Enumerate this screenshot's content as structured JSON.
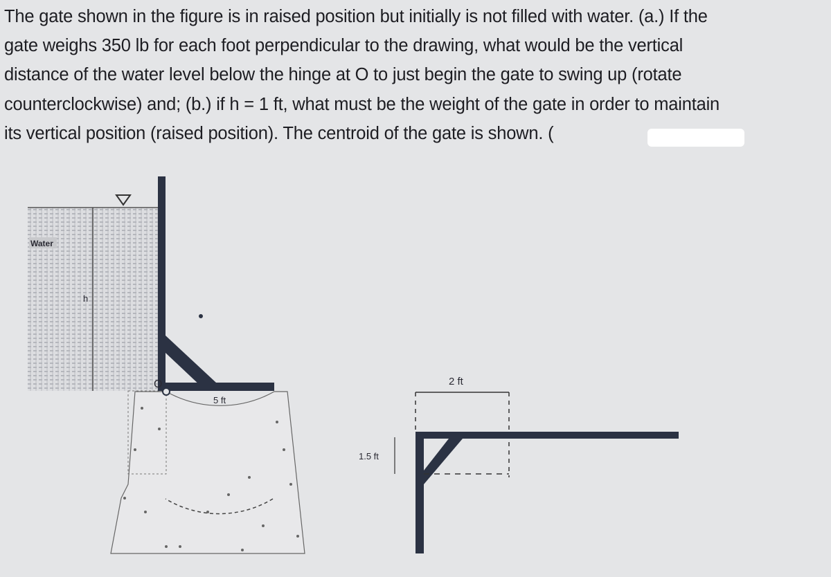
{
  "problem": {
    "lines": [
      "The gate shown in the figure is in raised position but initially is not filled with water. (a.) If the",
      "gate weighs 350 lb for each foot perpendicular to the drawing, what would be the vertical",
      "distance of the water level below the hinge at O to just begin the gate to swing up (rotate",
      "counterclockwise) and; (b.) if h = 1 ft, what must be the weight of the gate in order to maintain",
      "its vertical position (raised position). The centroid of the gate is shown. ("
    ]
  },
  "figure": {
    "water_label": "Water",
    "h_label": "h",
    "hinge_label": "O",
    "radius_label": "5 ft",
    "width_label": "2 ft",
    "height_label": "1.5 ft"
  }
}
